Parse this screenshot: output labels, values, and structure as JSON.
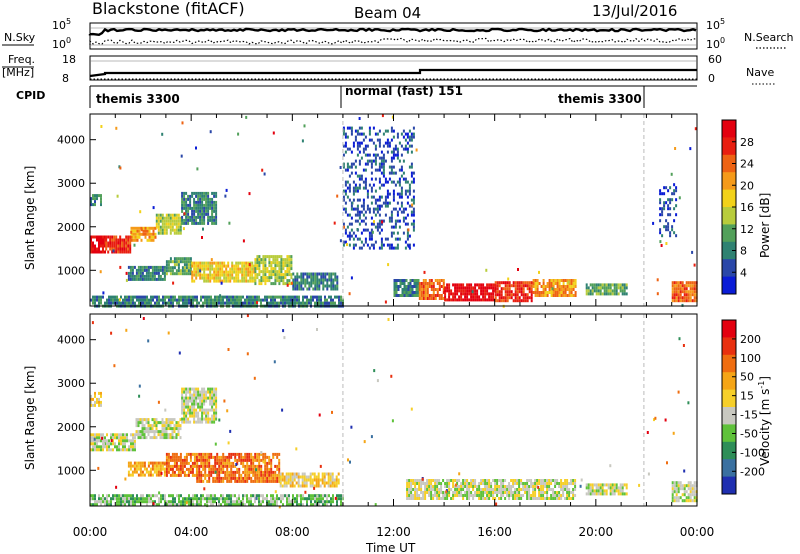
{
  "header": {
    "station": "Blackstone (fitACF)",
    "beam": "Beam 04",
    "date": "13/Jul/2016"
  },
  "panels": {
    "nsky": {
      "left_label": "N.Sky",
      "right_label": "N.Search",
      "left_ticks": [
        "10^5",
        "10^0"
      ],
      "right_ticks": [
        "10^5",
        "10^0"
      ]
    },
    "freq": {
      "left_label_top": "Freq.",
      "left_label_bottom": "[MHz]",
      "left_ticks": [
        "18",
        "8"
      ],
      "right_ticks": [
        "60",
        "0"
      ],
      "right_label": "Nave"
    },
    "cpid": {
      "label": "CPID",
      "segments": [
        "themis 3300",
        "normal (fast) 151",
        "themis 3300"
      ]
    }
  },
  "chart_data": [
    {
      "type": "heatmap",
      "name": "power",
      "ylabel": "Slant Range [km]",
      "yticks": [
        "1000",
        "2000",
        "3000",
        "4000"
      ],
      "ylim": [
        180,
        4590
      ],
      "xlim": [
        0,
        24
      ],
      "colorbar": {
        "label": "Power [dB]",
        "ticks": [
          "4",
          "8",
          "12",
          "16",
          "20",
          "24",
          "28"
        ],
        "colors": [
          "#0a1cd6",
          "#2a47a8",
          "#2f8272",
          "#52a05a",
          "#b8cc3c",
          "#f2d21a",
          "#f59a19",
          "#ee6313",
          "#e81e10",
          "#e3000f"
        ]
      },
      "regions": [
        {
          "t": [
            0.0,
            0.6
          ],
          "r": [
            1400,
            1800
          ],
          "level": 9
        },
        {
          "t": [
            0.6,
            1.6
          ],
          "r": [
            1450,
            1800
          ],
          "level": 8
        },
        {
          "t": [
            1.6,
            2.6
          ],
          "r": [
            1700,
            2000
          ],
          "level": 6
        },
        {
          "t": [
            2.6,
            3.6
          ],
          "r": [
            1850,
            2300
          ],
          "level": 4
        },
        {
          "t": [
            3.6,
            5.0
          ],
          "r": [
            2100,
            2800
          ],
          "level": 2
        },
        {
          "t": [
            0.0,
            0.4
          ],
          "r": [
            2500,
            2750
          ],
          "level": 2
        },
        {
          "t": [
            1.5,
            3.0
          ],
          "r": [
            800,
            1100
          ],
          "level": 2
        },
        {
          "t": [
            3.0,
            4.0
          ],
          "r": [
            900,
            1300
          ],
          "level": 3
        },
        {
          "t": [
            4.0,
            6.5
          ],
          "r": [
            750,
            1200
          ],
          "level": 5
        },
        {
          "t": [
            6.5,
            8.0
          ],
          "r": [
            700,
            1350
          ],
          "level": 4
        },
        {
          "t": [
            8.0,
            9.8
          ],
          "r": [
            600,
            950
          ],
          "level": 2
        },
        {
          "t": [
            0.0,
            10.0
          ],
          "r": [
            180,
            420
          ],
          "level": 2
        },
        {
          "t": [
            10.0,
            12.8
          ],
          "r": [
            1500,
            4300
          ],
          "level": 1
        },
        {
          "t": [
            12.0,
            13.0
          ],
          "r": [
            400,
            800
          ],
          "level": 2
        },
        {
          "t": [
            13.0,
            14.0
          ],
          "r": [
            350,
            800
          ],
          "level": 7
        },
        {
          "t": [
            14.0,
            16.0
          ],
          "r": [
            300,
            700
          ],
          "level": 9
        },
        {
          "t": [
            16.0,
            17.5
          ],
          "r": [
            300,
            750
          ],
          "level": 8
        },
        {
          "t": [
            17.5,
            19.2
          ],
          "r": [
            400,
            800
          ],
          "level": 6
        },
        {
          "t": [
            19.6,
            21.2
          ],
          "r": [
            450,
            700
          ],
          "level": 3
        },
        {
          "t": [
            22.5,
            23.2
          ],
          "r": [
            1800,
            3000
          ],
          "level": 1
        },
        {
          "t": [
            23.0,
            24.0
          ],
          "r": [
            300,
            750
          ],
          "level": 7
        }
      ]
    },
    {
      "type": "heatmap",
      "name": "velocity",
      "ylabel": "Slant Range [km]",
      "yticks": [
        "1000",
        "2000",
        "3000",
        "4000"
      ],
      "ylim": [
        180,
        4590
      ],
      "xlim": [
        0,
        24
      ],
      "xticks": [
        "00:00",
        "04:00",
        "08:00",
        "12:00",
        "16:00",
        "20:00",
        "00:00"
      ],
      "xlabel": "Time UT",
      "colorbar": {
        "label": "Velocity [m s^-1]",
        "ticks": [
          "200",
          "100",
          "50",
          "15",
          "-15",
          "-50",
          "-100",
          "-200"
        ],
        "colors": [
          "#1f2fb0",
          "#3a70a0",
          "#2e8e58",
          "#5fc23a",
          "#c8c8c0",
          "#f6cf2a",
          "#f5a516",
          "#ef6d10",
          "#e8300f",
          "#e3000f"
        ]
      },
      "regions": [
        {
          "t": [
            0.0,
            1.8
          ],
          "r": [
            1500,
            1850
          ],
          "level": 4
        },
        {
          "t": [
            1.8,
            3.6
          ],
          "r": [
            1750,
            2200
          ],
          "level": 4
        },
        {
          "t": [
            3.6,
            5.0
          ],
          "r": [
            2100,
            2900
          ],
          "level": 4
        },
        {
          "t": [
            0.0,
            0.4
          ],
          "r": [
            2500,
            2800
          ],
          "level": 5
        },
        {
          "t": [
            1.5,
            3.0
          ],
          "r": [
            900,
            1200
          ],
          "level": 6
        },
        {
          "t": [
            3.0,
            4.2
          ],
          "r": [
            900,
            1400
          ],
          "level": 7
        },
        {
          "t": [
            4.2,
            7.5
          ],
          "r": [
            750,
            1400
          ],
          "level": 7
        },
        {
          "t": [
            7.5,
            9.8
          ],
          "r": [
            650,
            950
          ],
          "level": 5
        },
        {
          "t": [
            0.0,
            10.0
          ],
          "r": [
            180,
            450
          ],
          "level": 3
        },
        {
          "t": [
            12.5,
            19.2
          ],
          "r": [
            350,
            800
          ],
          "level": 4
        },
        {
          "t": [
            19.6,
            21.2
          ],
          "r": [
            450,
            700
          ],
          "level": 4
        },
        {
          "t": [
            23.0,
            24.0
          ],
          "r": [
            300,
            750
          ],
          "level": 4
        }
      ]
    }
  ]
}
